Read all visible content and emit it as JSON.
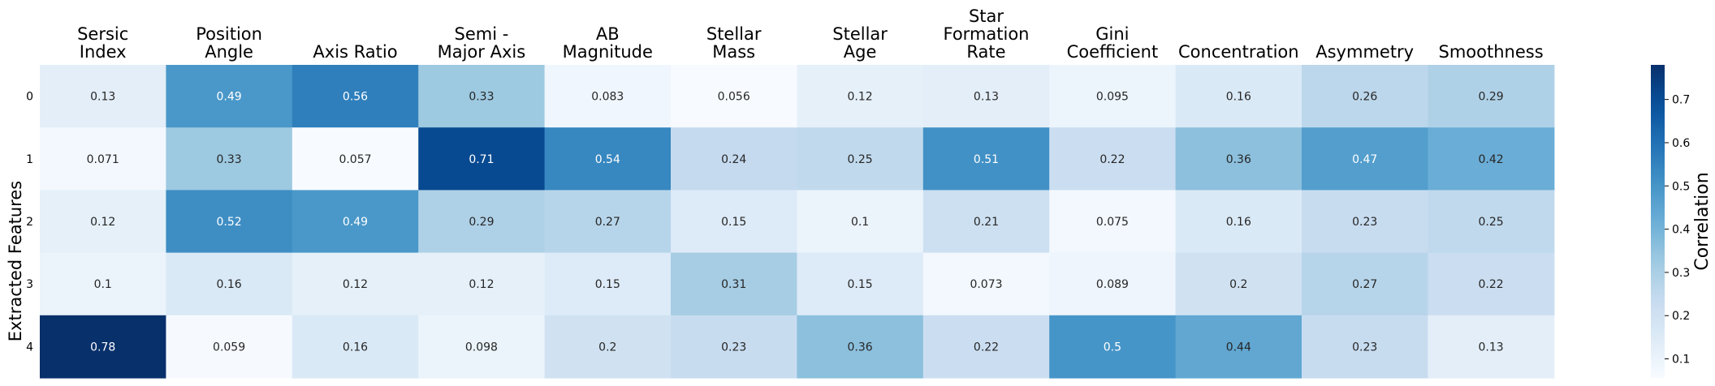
{
  "chart_data": {
    "type": "heatmap",
    "columns": [
      [
        "Sersic",
        "Index"
      ],
      [
        "Position",
        "Angle"
      ],
      [
        "Axis Ratio"
      ],
      [
        "Semi -",
        "Major Axis"
      ],
      [
        "AB",
        "Magnitude"
      ],
      [
        "Stellar",
        "Mass"
      ],
      [
        "Stellar",
        "Age"
      ],
      [
        "Star",
        "Formation",
        "Rate"
      ],
      [
        "Gini",
        "Coefficient"
      ],
      [
        "Concentration"
      ],
      [
        "Asymmetry"
      ],
      [
        "Smoothness"
      ]
    ],
    "rows": [
      "0",
      "1",
      "2",
      "3",
      "4"
    ],
    "values": [
      [
        0.13,
        0.49,
        0.56,
        0.33,
        0.083,
        0.056,
        0.12,
        0.13,
        0.095,
        0.16,
        0.26,
        0.29
      ],
      [
        0.071,
        0.33,
        0.057,
        0.71,
        0.54,
        0.24,
        0.25,
        0.51,
        0.22,
        0.36,
        0.47,
        0.42
      ],
      [
        0.12,
        0.52,
        0.49,
        0.29,
        0.27,
        0.15,
        0.1,
        0.21,
        0.075,
        0.16,
        0.23,
        0.25
      ],
      [
        0.1,
        0.16,
        0.12,
        0.12,
        0.15,
        0.31,
        0.15,
        0.073,
        0.089,
        0.2,
        0.27,
        0.22
      ],
      [
        0.78,
        0.059,
        0.16,
        0.098,
        0.2,
        0.23,
        0.36,
        0.22,
        0.5,
        0.44,
        0.23,
        0.13
      ]
    ],
    "ylabel": "Extracted Features",
    "colorbar": {
      "label": "Correlation",
      "min": 0.056,
      "max": 0.78,
      "ticks": [
        "0.1",
        "0.2",
        "0.3",
        "0.4",
        "0.5",
        "0.6",
        "0.7"
      ],
      "colormap": "Blues"
    }
  }
}
